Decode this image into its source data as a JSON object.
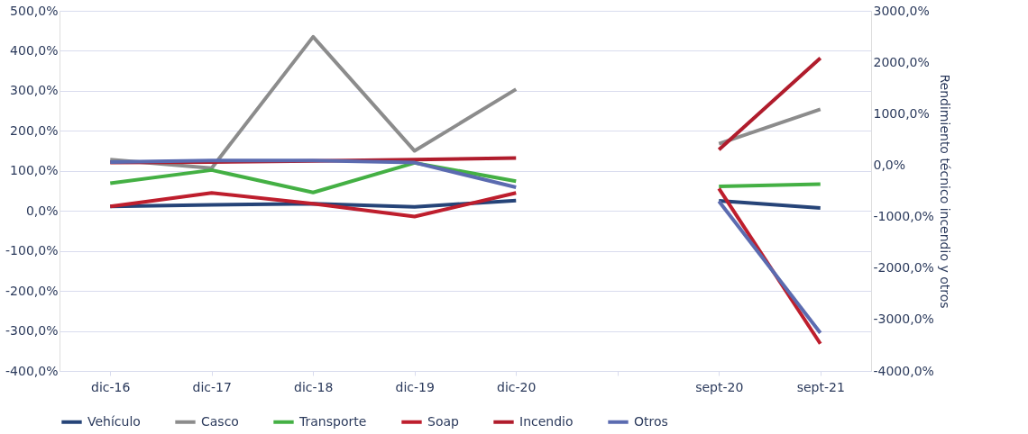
{
  "chart_data": {
    "type": "line",
    "categories": [
      "dic-16",
      "dic-17",
      "dic-18",
      "dic-19",
      "dic-20",
      null,
      "sept-20",
      "sept-21"
    ],
    "series": [
      {
        "name": "Vehículo",
        "color": "#264478",
        "values": [
          11,
          15,
          18,
          10,
          26,
          null,
          25,
          7
        ]
      },
      {
        "name": "Casco",
        "color": "#8c8c8c",
        "values": [
          128,
          107,
          435,
          150,
          304,
          null,
          168,
          254
        ]
      },
      {
        "name": "Transporte",
        "color": "#44b044",
        "values": [
          69,
          102,
          46,
          120,
          74,
          null,
          61,
          67
        ]
      },
      {
        "name": "Soap",
        "color": "#be1e2d",
        "values": [
          11,
          45,
          18,
          -14,
          45,
          null,
          56,
          -332
        ]
      },
      {
        "name": "Incendio",
        "color": "#b01c2c",
        "axis": "y2",
        "values": [
          50,
          60,
          80,
          110,
          140,
          null,
          300,
          2080
        ]
      },
      {
        "name": "Otros",
        "color": "#5b6bb0",
        "axis": "y2",
        "values": [
          60,
          90,
          90,
          50,
          -430,
          null,
          -700,
          -3260
        ]
      }
    ],
    "ylim": [
      -400,
      500
    ],
    "yticks": [
      {
        "value": -400,
        "label": "-400,0%"
      },
      {
        "value": -300,
        "label": "-300,0%"
      },
      {
        "value": -200,
        "label": "-200,0%"
      },
      {
        "value": -100,
        "label": "-100,0%"
      },
      {
        "value": 0,
        "label": "0,0%"
      },
      {
        "value": 100,
        "label": "100,0%"
      },
      {
        "value": 200,
        "label": "200,0%"
      },
      {
        "value": 300,
        "label": "300,0%"
      },
      {
        "value": 400,
        "label": "400,0%"
      },
      {
        "value": 500,
        "label": "500,0%"
      }
    ],
    "y2lim": [
      -4000,
      3000
    ],
    "y2ticks": [
      {
        "value": -4000,
        "label": "-4000,0%"
      },
      {
        "value": -3000,
        "label": "-3000,0%"
      },
      {
        "value": -2000,
        "label": "-2000,0%"
      },
      {
        "value": -1000,
        "label": "-1000,0%"
      },
      {
        "value": 0,
        "label": "0,0%"
      },
      {
        "value": 1000,
        "label": "1000,0%"
      },
      {
        "value": 2000,
        "label": "2000,0%"
      },
      {
        "value": 3000,
        "label": "3000,0%"
      }
    ],
    "y2label": "Rendimiento técnico incendio y otros",
    "grid": "y",
    "legend": "bottom",
    "marker": "none",
    "line_style": "solid"
  }
}
